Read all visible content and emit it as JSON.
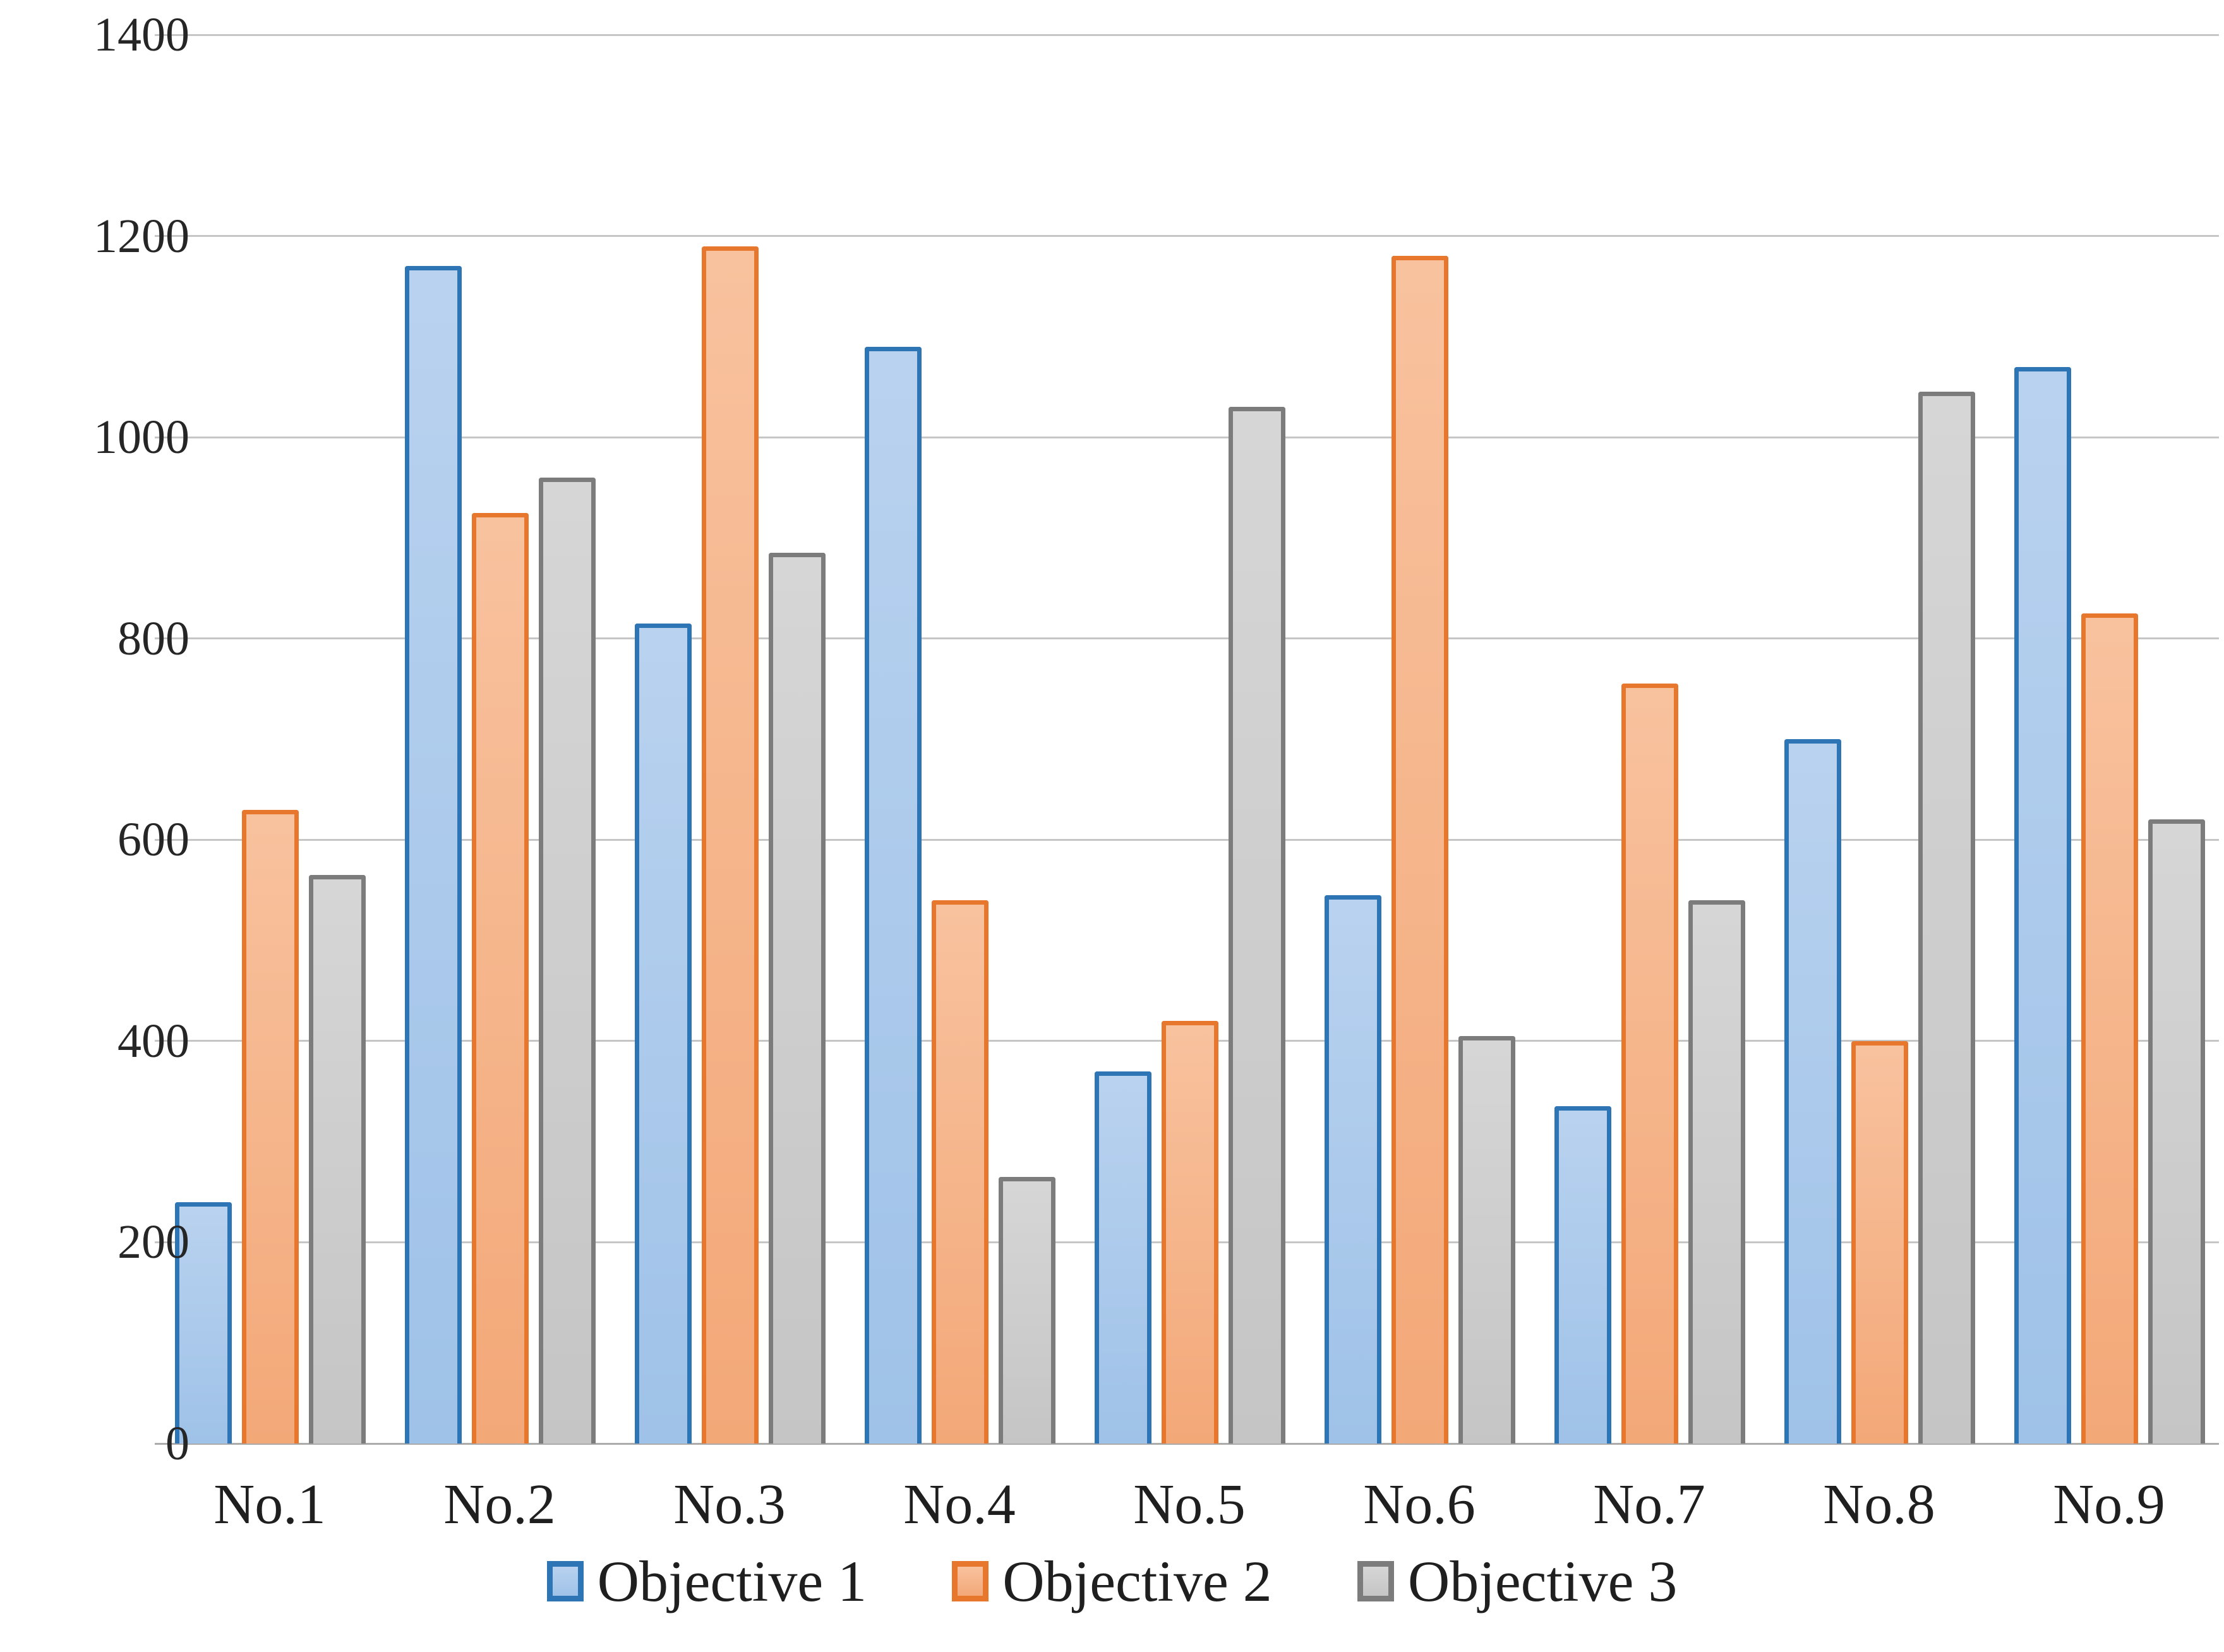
{
  "chart_data": {
    "type": "bar",
    "title": "",
    "xlabel": "",
    "ylabel": "",
    "categories": [
      "No.1",
      "No.2",
      "No.3",
      "No.4",
      "No.5",
      "No.6",
      "No.7",
      "No.8",
      "No.9"
    ],
    "series": [
      {
        "name": "Objective 1",
        "values": [
          240,
          1170,
          815,
          1090,
          370,
          545,
          335,
          700,
          1070
        ],
        "fill_top": "#B9D2EF",
        "fill_bottom": "#9FC2E8",
        "border": "#2E75B6"
      },
      {
        "name": "Objective 2",
        "values": [
          630,
          925,
          1190,
          540,
          420,
          1180,
          755,
          400,
          825
        ],
        "fill_top": "#F8C29E",
        "fill_bottom": "#F3A878",
        "border": "#E8772E"
      },
      {
        "name": "Objective 3",
        "values": [
          565,
          960,
          885,
          265,
          1030,
          405,
          540,
          1045,
          620
        ],
        "fill_top": "#D6D6D6",
        "fill_bottom": "#C5C5C5",
        "border": "#7C7C7C"
      }
    ],
    "ylim": [
      0,
      1400
    ],
    "ytick_step": 200,
    "ytick_labels": [
      "0",
      "200",
      "400",
      "600",
      "800",
      "1000",
      "1200",
      "1400"
    ],
    "grid": true,
    "legend_position": "bottom"
  },
  "colors": {
    "gridline": "#C6C6C6",
    "axis_line": "#ABABAB",
    "tick_text": "#262626",
    "label_text": "#1F1F1F",
    "background": "#FFFFFF"
  }
}
